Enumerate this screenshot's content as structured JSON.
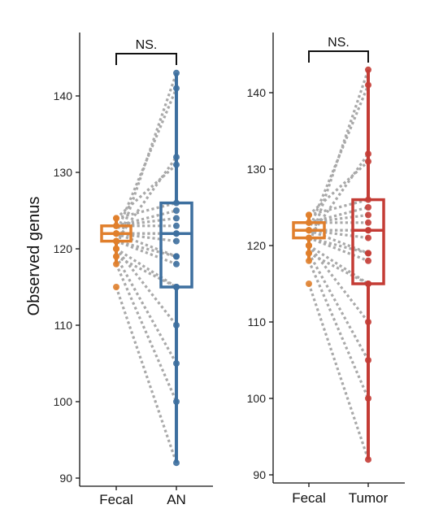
{
  "chart_data": [
    {
      "type": "box-paired",
      "ylabel": "Observed genus",
      "ylim": [
        90,
        145
      ],
      "yticks": [
        90,
        100,
        110,
        120,
        130,
        140
      ],
      "categories": [
        "Fecal",
        "AN"
      ],
      "significance": "NS.",
      "colors": {
        "Fecal": "#e07f2c",
        "AN": "#3d6f9f"
      },
      "series": [
        {
          "name": "Fecal",
          "values": [
            115,
            118,
            119,
            120,
            120,
            121,
            121,
            122,
            122,
            122,
            123,
            123,
            123,
            124,
            124,
            121,
            122,
            120,
            119,
            122
          ]
        },
        {
          "name": "AN",
          "values": [
            92,
            100,
            105,
            110,
            115,
            118,
            119,
            121,
            122,
            122,
            123,
            124,
            125,
            126,
            131,
            132,
            141,
            143,
            115,
            119
          ]
        }
      ],
      "box_stats": {
        "Fecal": {
          "min": 118,
          "q1": 121,
          "median": 122,
          "q3": 123,
          "max": 124
        },
        "AN": {
          "min": 92,
          "q1": 115,
          "median": 122,
          "q3": 126,
          "max": 143
        }
      }
    },
    {
      "type": "box-paired",
      "ylabel": "",
      "ylim": [
        90,
        145
      ],
      "yticks": [
        90,
        100,
        110,
        120,
        130,
        140
      ],
      "categories": [
        "Fecal",
        "Tumor"
      ],
      "significance": "NS.",
      "colors": {
        "Fecal": "#e07f2c",
        "Tumor": "#c43c35"
      },
      "series": [
        {
          "name": "Fecal",
          "values": [
            115,
            118,
            119,
            120,
            120,
            121,
            121,
            122,
            122,
            122,
            123,
            123,
            123,
            124,
            124,
            121,
            122,
            120,
            119,
            122
          ]
        },
        {
          "name": "Tumor",
          "values": [
            92,
            100,
            105,
            110,
            115,
            118,
            119,
            121,
            122,
            122,
            123,
            124,
            125,
            126,
            131,
            132,
            141,
            143,
            115,
            119
          ]
        }
      ],
      "box_stats": {
        "Fecal": {
          "min": 118,
          "q1": 121,
          "median": 122,
          "q3": 123,
          "max": 124
        },
        "Tumor": {
          "min": 92,
          "q1": 115,
          "median": 122,
          "q3": 126,
          "max": 143
        }
      }
    }
  ]
}
